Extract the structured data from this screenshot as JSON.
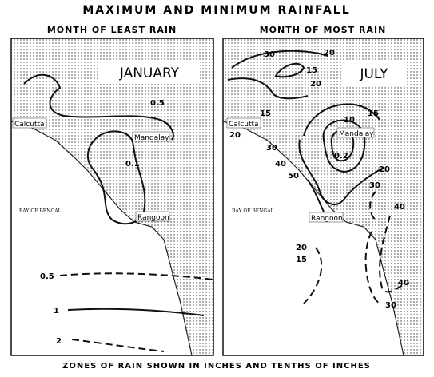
{
  "title": "MAXIMUM AND MINIMUM RAINFALL",
  "left": {
    "subtitle": "MONTH OF LEAST RAIN",
    "label": "JANUARY",
    "places": [
      "Calcutta",
      "Mandalay",
      "Rangoon",
      "BAY OF BENGAL"
    ],
    "isolines": [
      "0.5",
      "0.1",
      "0.5",
      "1",
      "2"
    ]
  },
  "right": {
    "subtitle": "MONTH OF MOST RAIN",
    "label": "JULY",
    "places": [
      "Calcutta",
      "Mandalay",
      "Rangoon",
      "BAY OF BENGAL"
    ],
    "isolines": [
      "30",
      "15",
      "20",
      "15",
      "20",
      "10",
      "20",
      "30",
      "0.2",
      "40",
      "50",
      "15",
      "20",
      "30",
      "40",
      "20",
      "15",
      "40",
      "30"
    ]
  },
  "footer": "ZONES OF RAIN SHOWN IN INCHES AND TENTHS OF INCHES"
}
